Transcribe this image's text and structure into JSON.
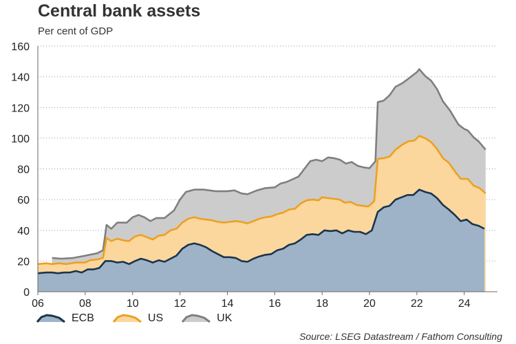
{
  "title": "Central bank assets",
  "subtitle": "Per cent of GDP",
  "source": "Source: LSEG Datastream / Fathom Consulting",
  "chart_data": {
    "type": "area",
    "title": "Central bank assets",
    "ylabel": "Per cent of GDP",
    "xlabel": "",
    "xlim": [
      2006.0,
      2025.4
    ],
    "ylim": [
      0,
      160
    ],
    "xticks": [
      {
        "value": 2006,
        "label": "06"
      },
      {
        "value": 2008,
        "label": "08"
      },
      {
        "value": 2010,
        "label": "10"
      },
      {
        "value": 2012,
        "label": "12"
      },
      {
        "value": 2014,
        "label": "14"
      },
      {
        "value": 2016,
        "label": "16"
      },
      {
        "value": 2018,
        "label": "18"
      },
      {
        "value": 2020,
        "label": "20"
      },
      {
        "value": 2022,
        "label": "22"
      },
      {
        "value": 2024,
        "label": "24"
      }
    ],
    "yticks": [
      0,
      20,
      40,
      60,
      80,
      100,
      120,
      140,
      160
    ],
    "grid": "horizontal dotted",
    "legend_position": "bottom-left",
    "series": [
      {
        "name": "UK",
        "fill": "#cccccc",
        "line": "#7f7f7f",
        "points": [
          [
            2006.6,
            22
          ],
          [
            2007.0,
            21.5
          ],
          [
            2007.5,
            22
          ],
          [
            2008.0,
            23.5
          ],
          [
            2008.5,
            25
          ],
          [
            2008.75,
            27
          ],
          [
            2008.9,
            43.5
          ],
          [
            2009.1,
            41
          ],
          [
            2009.35,
            45
          ],
          [
            2009.75,
            45
          ],
          [
            2010.0,
            48.5
          ],
          [
            2010.25,
            50
          ],
          [
            2010.5,
            48.5
          ],
          [
            2010.75,
            46
          ],
          [
            2011.0,
            48
          ],
          [
            2011.35,
            48
          ],
          [
            2011.75,
            53
          ],
          [
            2012.0,
            60
          ],
          [
            2012.25,
            65
          ],
          [
            2012.6,
            66.5
          ],
          [
            2013.0,
            66.5
          ],
          [
            2013.5,
            65.5
          ],
          [
            2014.0,
            65.5
          ],
          [
            2014.3,
            66
          ],
          [
            2014.6,
            64
          ],
          [
            2014.85,
            63.5
          ],
          [
            2015.25,
            66
          ],
          [
            2015.6,
            67.5
          ],
          [
            2016.0,
            68
          ],
          [
            2016.25,
            70.5
          ],
          [
            2016.5,
            71.5
          ],
          [
            2017.0,
            75
          ],
          [
            2017.25,
            80
          ],
          [
            2017.5,
            85
          ],
          [
            2017.75,
            86
          ],
          [
            2018.0,
            85
          ],
          [
            2018.25,
            87.5
          ],
          [
            2018.5,
            87
          ],
          [
            2018.75,
            86
          ],
          [
            2019.0,
            83.5
          ],
          [
            2019.25,
            84.5
          ],
          [
            2019.5,
            82
          ],
          [
            2019.75,
            81
          ],
          [
            2020.0,
            80.5
          ],
          [
            2020.25,
            85
          ],
          [
            2020.35,
            123.5
          ],
          [
            2020.6,
            124.5
          ],
          [
            2020.85,
            128
          ],
          [
            2021.1,
            133.5
          ],
          [
            2021.4,
            136
          ],
          [
            2021.75,
            140
          ],
          [
            2022.0,
            143
          ],
          [
            2022.1,
            145
          ],
          [
            2022.35,
            140.5
          ],
          [
            2022.6,
            137.5
          ],
          [
            2022.85,
            132
          ],
          [
            2023.1,
            124
          ],
          [
            2023.4,
            118
          ],
          [
            2023.75,
            109
          ],
          [
            2024.0,
            106
          ],
          [
            2024.15,
            105
          ],
          [
            2024.4,
            100.5
          ],
          [
            2024.6,
            98
          ],
          [
            2024.9,
            92.5
          ]
        ]
      },
      {
        "name": "US",
        "fill": "#fbd79d",
        "line": "#eda021",
        "points": [
          [
            2006.0,
            18
          ],
          [
            2006.35,
            18.5
          ],
          [
            2006.6,
            18
          ],
          [
            2006.9,
            18.5
          ],
          [
            2007.2,
            18
          ],
          [
            2007.6,
            19
          ],
          [
            2008.0,
            19
          ],
          [
            2008.2,
            20.5
          ],
          [
            2008.5,
            21
          ],
          [
            2008.75,
            22
          ],
          [
            2008.9,
            35
          ],
          [
            2009.1,
            33
          ],
          [
            2009.35,
            34.5
          ],
          [
            2009.6,
            33.5
          ],
          [
            2009.85,
            33
          ],
          [
            2010.1,
            36
          ],
          [
            2010.35,
            37
          ],
          [
            2010.6,
            35.5
          ],
          [
            2010.85,
            34
          ],
          [
            2011.1,
            36.5
          ],
          [
            2011.35,
            37
          ],
          [
            2011.6,
            40
          ],
          [
            2011.85,
            41
          ],
          [
            2012.1,
            45
          ],
          [
            2012.35,
            47.5
          ],
          [
            2012.6,
            48.5
          ],
          [
            2012.85,
            47.5
          ],
          [
            2013.1,
            47
          ],
          [
            2013.35,
            46.5
          ],
          [
            2013.6,
            45.5
          ],
          [
            2013.85,
            45
          ],
          [
            2014.1,
            45.5
          ],
          [
            2014.35,
            46
          ],
          [
            2014.6,
            45.5
          ],
          [
            2014.85,
            44.5
          ],
          [
            2015.1,
            46
          ],
          [
            2015.35,
            47.5
          ],
          [
            2015.6,
            48.5
          ],
          [
            2015.85,
            49
          ],
          [
            2016.1,
            50.5
          ],
          [
            2016.35,
            51.5
          ],
          [
            2016.6,
            53.5
          ],
          [
            2016.85,
            54
          ],
          [
            2017.1,
            57.5
          ],
          [
            2017.35,
            59.5
          ],
          [
            2017.6,
            60
          ],
          [
            2017.85,
            59.5
          ],
          [
            2018.0,
            61.5
          ],
          [
            2018.25,
            61
          ],
          [
            2018.5,
            60.5
          ],
          [
            2018.75,
            60
          ],
          [
            2018.95,
            58
          ],
          [
            2019.2,
            58.5
          ],
          [
            2019.45,
            56.5
          ],
          [
            2019.7,
            56
          ],
          [
            2019.95,
            55.5
          ],
          [
            2020.2,
            59
          ],
          [
            2020.35,
            86.5
          ],
          [
            2020.6,
            87
          ],
          [
            2020.85,
            88
          ],
          [
            2021.1,
            92.5
          ],
          [
            2021.4,
            96
          ],
          [
            2021.65,
            98
          ],
          [
            2021.9,
            98.5
          ],
          [
            2022.1,
            101.5
          ],
          [
            2022.35,
            100
          ],
          [
            2022.6,
            97.5
          ],
          [
            2022.85,
            93
          ],
          [
            2023.1,
            87
          ],
          [
            2023.35,
            84
          ],
          [
            2023.6,
            78.5
          ],
          [
            2023.85,
            73.5
          ],
          [
            2024.15,
            73.5
          ],
          [
            2024.4,
            69
          ],
          [
            2024.65,
            67.5
          ],
          [
            2024.9,
            64
          ]
        ]
      },
      {
        "name": "ECB",
        "fill": "#9fb3c8",
        "line": "#1a344c",
        "points": [
          [
            2006.0,
            12
          ],
          [
            2006.35,
            12.5
          ],
          [
            2006.6,
            12.5
          ],
          [
            2006.85,
            12
          ],
          [
            2007.1,
            12.5
          ],
          [
            2007.35,
            12.5
          ],
          [
            2007.6,
            13.5
          ],
          [
            2007.85,
            12.5
          ],
          [
            2008.1,
            14.5
          ],
          [
            2008.35,
            14.5
          ],
          [
            2008.6,
            15.5
          ],
          [
            2008.85,
            20
          ],
          [
            2009.1,
            20
          ],
          [
            2009.35,
            19
          ],
          [
            2009.6,
            19.5
          ],
          [
            2009.85,
            18
          ],
          [
            2010.1,
            20
          ],
          [
            2010.35,
            21.5
          ],
          [
            2010.6,
            20.5
          ],
          [
            2010.85,
            19
          ],
          [
            2011.1,
            20.5
          ],
          [
            2011.35,
            19.5
          ],
          [
            2011.6,
            21.5
          ],
          [
            2011.85,
            23.5
          ],
          [
            2012.1,
            28
          ],
          [
            2012.35,
            30.5
          ],
          [
            2012.6,
            31.5
          ],
          [
            2012.85,
            30.5
          ],
          [
            2013.1,
            29
          ],
          [
            2013.35,
            26.5
          ],
          [
            2013.6,
            24.5
          ],
          [
            2013.85,
            22.5
          ],
          [
            2014.1,
            22.5
          ],
          [
            2014.35,
            22
          ],
          [
            2014.6,
            20
          ],
          [
            2014.85,
            19.5
          ],
          [
            2015.1,
            21.5
          ],
          [
            2015.35,
            23
          ],
          [
            2015.6,
            24
          ],
          [
            2015.85,
            24.5
          ],
          [
            2016.1,
            27
          ],
          [
            2016.35,
            28
          ],
          [
            2016.6,
            30.5
          ],
          [
            2016.85,
            31.5
          ],
          [
            2017.1,
            34
          ],
          [
            2017.35,
            37
          ],
          [
            2017.6,
            37.5
          ],
          [
            2017.85,
            37
          ],
          [
            2018.1,
            40
          ],
          [
            2018.35,
            39.5
          ],
          [
            2018.6,
            40
          ],
          [
            2018.85,
            38
          ],
          [
            2019.1,
            40
          ],
          [
            2019.35,
            39
          ],
          [
            2019.6,
            39
          ],
          [
            2019.85,
            37.5
          ],
          [
            2020.1,
            40
          ],
          [
            2020.35,
            52
          ],
          [
            2020.6,
            55
          ],
          [
            2020.85,
            56
          ],
          [
            2021.1,
            60
          ],
          [
            2021.35,
            61.5
          ],
          [
            2021.6,
            63
          ],
          [
            2021.85,
            63
          ],
          [
            2022.1,
            66.5
          ],
          [
            2022.35,
            65
          ],
          [
            2022.6,
            64
          ],
          [
            2022.85,
            61
          ],
          [
            2023.1,
            56.5
          ],
          [
            2023.35,
            53.5
          ],
          [
            2023.6,
            50
          ],
          [
            2023.85,
            46
          ],
          [
            2024.1,
            47
          ],
          [
            2024.35,
            44
          ],
          [
            2024.6,
            43
          ],
          [
            2024.85,
            41
          ]
        ]
      }
    ]
  },
  "legend": [
    {
      "key": "ECB",
      "label": "ECB"
    },
    {
      "key": "US",
      "label": "US"
    },
    {
      "key": "UK",
      "label": "UK"
    }
  ]
}
